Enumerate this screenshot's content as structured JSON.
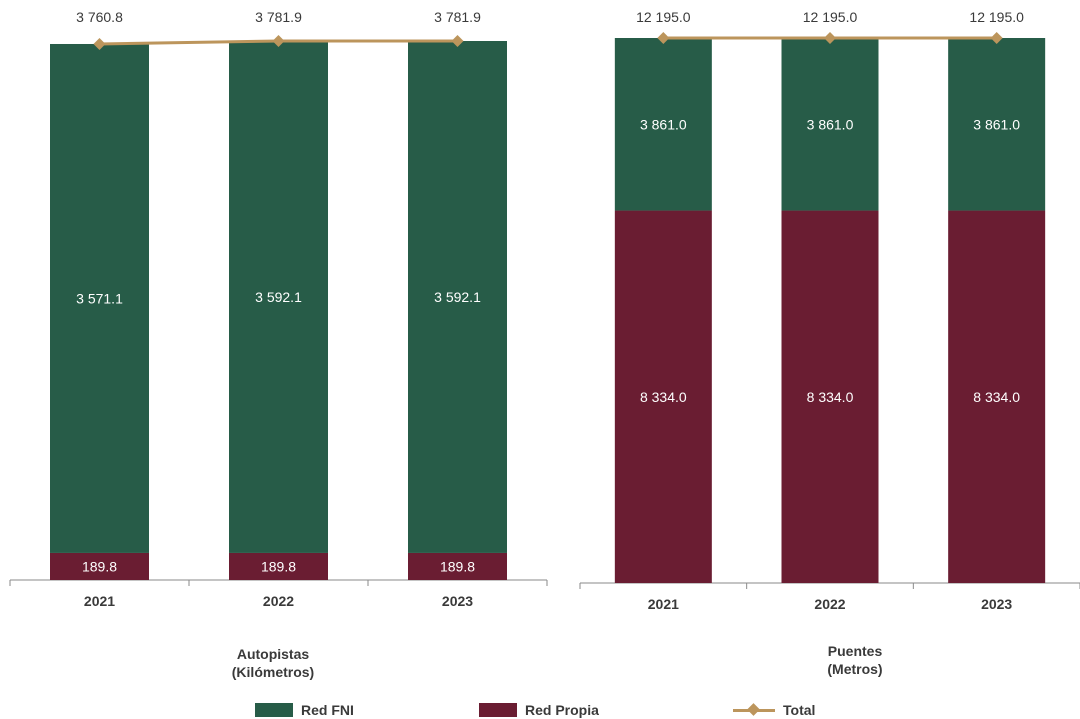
{
  "colors": {
    "red_fni": "#275c48",
    "red_propia": "#6a1d32",
    "total": "#bc955c",
    "axis": "#8a8a8a",
    "text": "#3a3a3a"
  },
  "chart_data": [
    {
      "type": "bar",
      "stacked": true,
      "title": "Autopistas\n(Kilómetros)",
      "title_line1": "Autopistas",
      "title_line2": "(Kilómetros)",
      "categories": [
        "2021",
        "2022",
        "2023"
      ],
      "series": [
        {
          "name": "Red Propia",
          "values": [
            189.8,
            189.8,
            189.8
          ],
          "labels": [
            "189.8",
            "189.8",
            "189.8"
          ]
        },
        {
          "name": "Red FNI",
          "values": [
            3571.1,
            3592.1,
            3592.1
          ],
          "labels": [
            "3 571.1",
            "3 592.1",
            "3 592.1"
          ]
        }
      ],
      "total": {
        "name": "Total",
        "values": [
          3760.8,
          3781.9,
          3781.9
        ],
        "labels": [
          "3 760.8",
          "3 781.9",
          "3 781.9"
        ]
      },
      "ylim": [
        0,
        3781.9
      ]
    },
    {
      "type": "bar",
      "stacked": true,
      "title": "Puentes\n(Metros)",
      "title_line1": "Puentes",
      "title_line2": "(Metros)",
      "categories": [
        "2021",
        "2022",
        "2023"
      ],
      "series": [
        {
          "name": "Red Propia",
          "values": [
            8334.0,
            8334.0,
            8334.0
          ],
          "labels": [
            "8 334.0",
            "8 334.0",
            "8 334.0"
          ]
        },
        {
          "name": "Red FNI",
          "values": [
            3861.0,
            3861.0,
            3861.0
          ],
          "labels": [
            "3 861.0",
            "3 861.0",
            "3 861.0"
          ]
        }
      ],
      "total": {
        "name": "Total",
        "values": [
          12195.0,
          12195.0,
          12195.0
        ],
        "labels": [
          "12 195.0",
          "12 195.0",
          "12 195.0"
        ]
      },
      "ylim": [
        0,
        12195.0
      ]
    }
  ],
  "legend": {
    "red_fni": "Red FNI",
    "red_propia": "Red Propia",
    "total": "Total"
  }
}
